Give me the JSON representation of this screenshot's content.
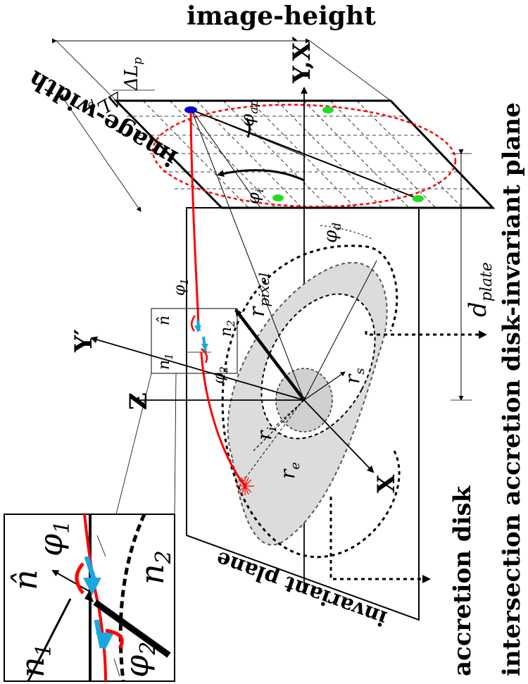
{
  "labels": {
    "image_height": "image-height",
    "image_width": "image-width",
    "axis_yx": "Y,X′",
    "axis_y_prime": "Y′",
    "axis_z": "Z",
    "axis_x": "X",
    "delta_lp": "ΔL",
    "delta_lp_sub": "p",
    "delta_lq": "ΔL",
    "delta_lq_sub": "p",
    "phi_ap": "φ",
    "phi_ap_sub": "ap",
    "phi_i": "φ",
    "phi_i_sub": "i",
    "phi_d": "φ",
    "phi_d_sub": "d",
    "r_pixel": "r",
    "r_pixel_sub": "pixel",
    "r_s": "r",
    "r_s_sub": "s",
    "r_i": "r",
    "r_i_sub": "i",
    "r_e": "r",
    "r_e_sub": "e",
    "d_plate": "d",
    "d_plate_sub": "plate",
    "n_hat": "n̂",
    "n1": "n",
    "n1_sub": "1",
    "n2": "n",
    "n2_sub": "2",
    "phi1": "φ",
    "phi1_sub": "1",
    "phi2": "φ",
    "phi2_sub": "2",
    "accretion_disk": "accretion disk",
    "invariant_plane": "invariant plane",
    "intersection": "intersection accretion disk-invariant plane"
  },
  "colors": {
    "ray": "#ff0000",
    "refracted": "#1aa7e0",
    "disk_fill": "#dcdcdc",
    "point_blue": "#0000dd",
    "point_green": "#22dd22",
    "ellipse": "#ff0000"
  }
}
